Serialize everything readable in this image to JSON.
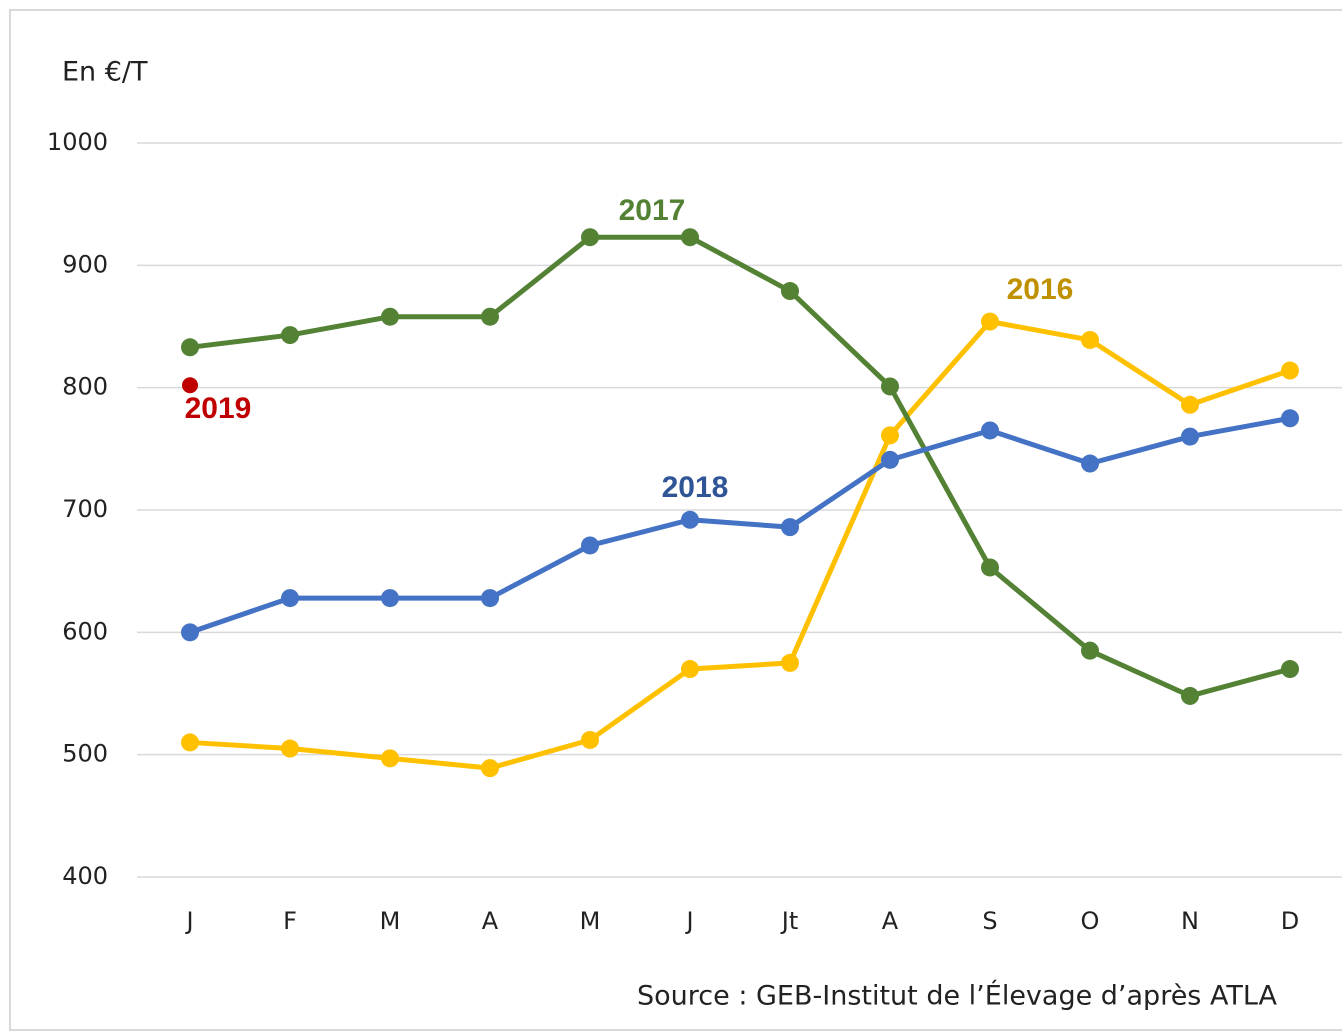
{
  "chart_data": {
    "type": "line",
    "y_label": "En €/T",
    "source": "Source : GEB-Institut de l’Élevage d’après ATLA",
    "categories": [
      "J",
      "F",
      "M",
      "A",
      "M",
      "J",
      "Jt",
      "A",
      "S",
      "O",
      "N",
      "D"
    ],
    "ylim": [
      400,
      1000
    ],
    "yticks": [
      400,
      500,
      600,
      700,
      800,
      900,
      1000
    ],
    "grid": true,
    "series": [
      {
        "name": "2016",
        "color": "#ffc000",
        "label_color": "#bf9000",
        "values": [
          510,
          505,
          497,
          489,
          512,
          570,
          575,
          761,
          854,
          839,
          786,
          814
        ]
      },
      {
        "name": "2017",
        "color": "#548235",
        "label_color": "#548235",
        "values": [
          833,
          843,
          858,
          858,
          923,
          923,
          879,
          801,
          653,
          585,
          548,
          570
        ]
      },
      {
        "name": "2018",
        "color": "#4472c4",
        "label_color": "#2f5597",
        "values": [
          600,
          628,
          628,
          628,
          671,
          692,
          686,
          741,
          765,
          738,
          760,
          775
        ]
      },
      {
        "name": "2019",
        "color": "#c00000",
        "label_color": "#c00000",
        "values": [
          802,
          null,
          null,
          null,
          null,
          null,
          null,
          null,
          null,
          null,
          null,
          null
        ]
      }
    ]
  }
}
